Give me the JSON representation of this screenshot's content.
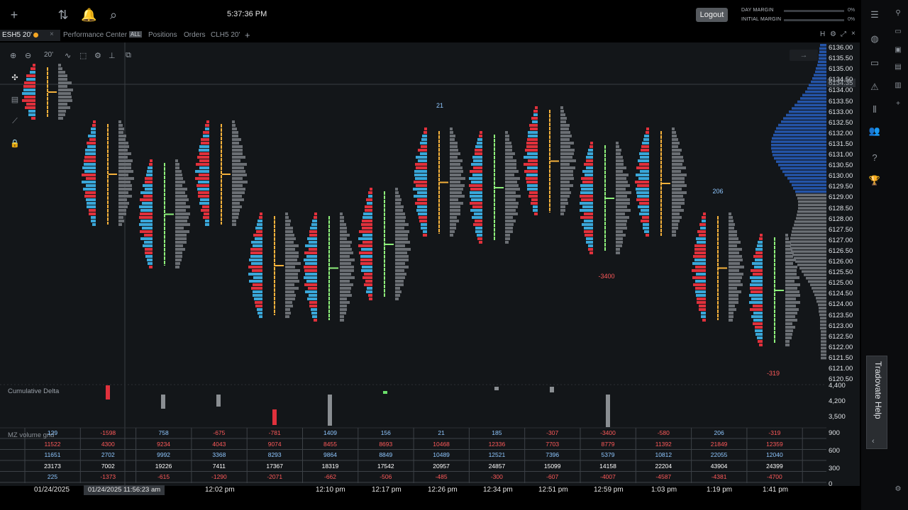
{
  "topbar": {
    "clock": "5:37:36 PM",
    "logout_label": "Logout",
    "margins": [
      {
        "label": "DAY MARGIN",
        "pct": "0%"
      },
      {
        "label": "INITIAL MARGIN",
        "pct": "0%"
      }
    ]
  },
  "tabs": [
    {
      "label": "ESH5 20'",
      "active": true
    },
    {
      "label": "Performance Center",
      "badge": "ALL"
    },
    {
      "label": "Positions"
    },
    {
      "label": "Orders"
    },
    {
      "label": "CLH5 20'"
    }
  ],
  "chart": {
    "timeframe": "20'",
    "current_price": "6134.35",
    "price_ticks": [
      "6136.00",
      "6135.50",
      "6135.00",
      "6134.50",
      "6134.00",
      "6133.50",
      "6133.00",
      "6132.50",
      "6132.00",
      "6131.50",
      "6131.00",
      "6130.50",
      "6130.00",
      "6129.50",
      "6129.00",
      "6128.50",
      "6128.00",
      "6127.50",
      "6127.00",
      "6126.50",
      "6126.00",
      "6125.50",
      "6125.00",
      "6124.50",
      "6124.00",
      "6123.50",
      "6123.00",
      "6122.50",
      "6122.00",
      "6121.50",
      "6121.00",
      "6120.50"
    ],
    "annotations": [
      {
        "text": "21",
        "color": "#8fc7ff"
      },
      {
        "text": "206",
        "color": "#8fc7ff"
      },
      {
        "text": "-3400",
        "color": "#ff5a5a"
      },
      {
        "text": "-319",
        "color": "#ff5a5a"
      }
    ],
    "cumulative_delta": {
      "label": "Cumulative Delta",
      "scale": [
        "4,400",
        "4,200",
        "3,500"
      ]
    },
    "mz_grid": {
      "label": "MZ volume grid",
      "rows": [
        {
          "color": "#8fc7ff",
          "values": [
            "129",
            "-1598",
            "758",
            "-675",
            "-781",
            "1409",
            "156",
            "21",
            "185",
            "-307",
            "-3400",
            "-580",
            "206",
            "-319"
          ]
        },
        {
          "color": "#ff5a5a",
          "values": [
            "11522",
            "4300",
            "9234",
            "4043",
            "9074",
            "8455",
            "8693",
            "10468",
            "12336",
            "7703",
            "8779",
            "11392",
            "21849",
            "12359"
          ]
        },
        {
          "color": "#8fc7ff",
          "values": [
            "11651",
            "2702",
            "9992",
            "3368",
            "8293",
            "9864",
            "8849",
            "10489",
            "12521",
            "7396",
            "5379",
            "10812",
            "22055",
            "12040"
          ]
        },
        {
          "color": "#ffffff",
          "values": [
            "23173",
            "7002",
            "19226",
            "7411",
            "17367",
            "18319",
            "17542",
            "20957",
            "24857",
            "15099",
            "14158",
            "22204",
            "43904",
            "24399"
          ]
        },
        {
          "color": "#8fc7ff",
          "values": [
            "225",
            "-1373",
            "-615",
            "-1290",
            "-2071",
            "-662",
            "-506",
            "-485",
            "-300",
            "-607",
            "-4007",
            "-4587",
            "-4381",
            "-4700"
          ]
        }
      ],
      "scale": [
        "900",
        "600",
        "300",
        "0"
      ]
    },
    "time_axis": [
      "01/24/2025",
      "12:02 pm",
      "12:10 pm",
      "12:17 pm",
      "12:26 pm",
      "12:34 pm",
      "12:51 pm",
      "12:59 pm",
      "1:03 pm",
      "1:19 pm",
      "1:41 pm"
    ],
    "time_chip": "01/24/2025 11:56:23 am"
  },
  "help": {
    "label": "Tradovate Help"
  }
}
